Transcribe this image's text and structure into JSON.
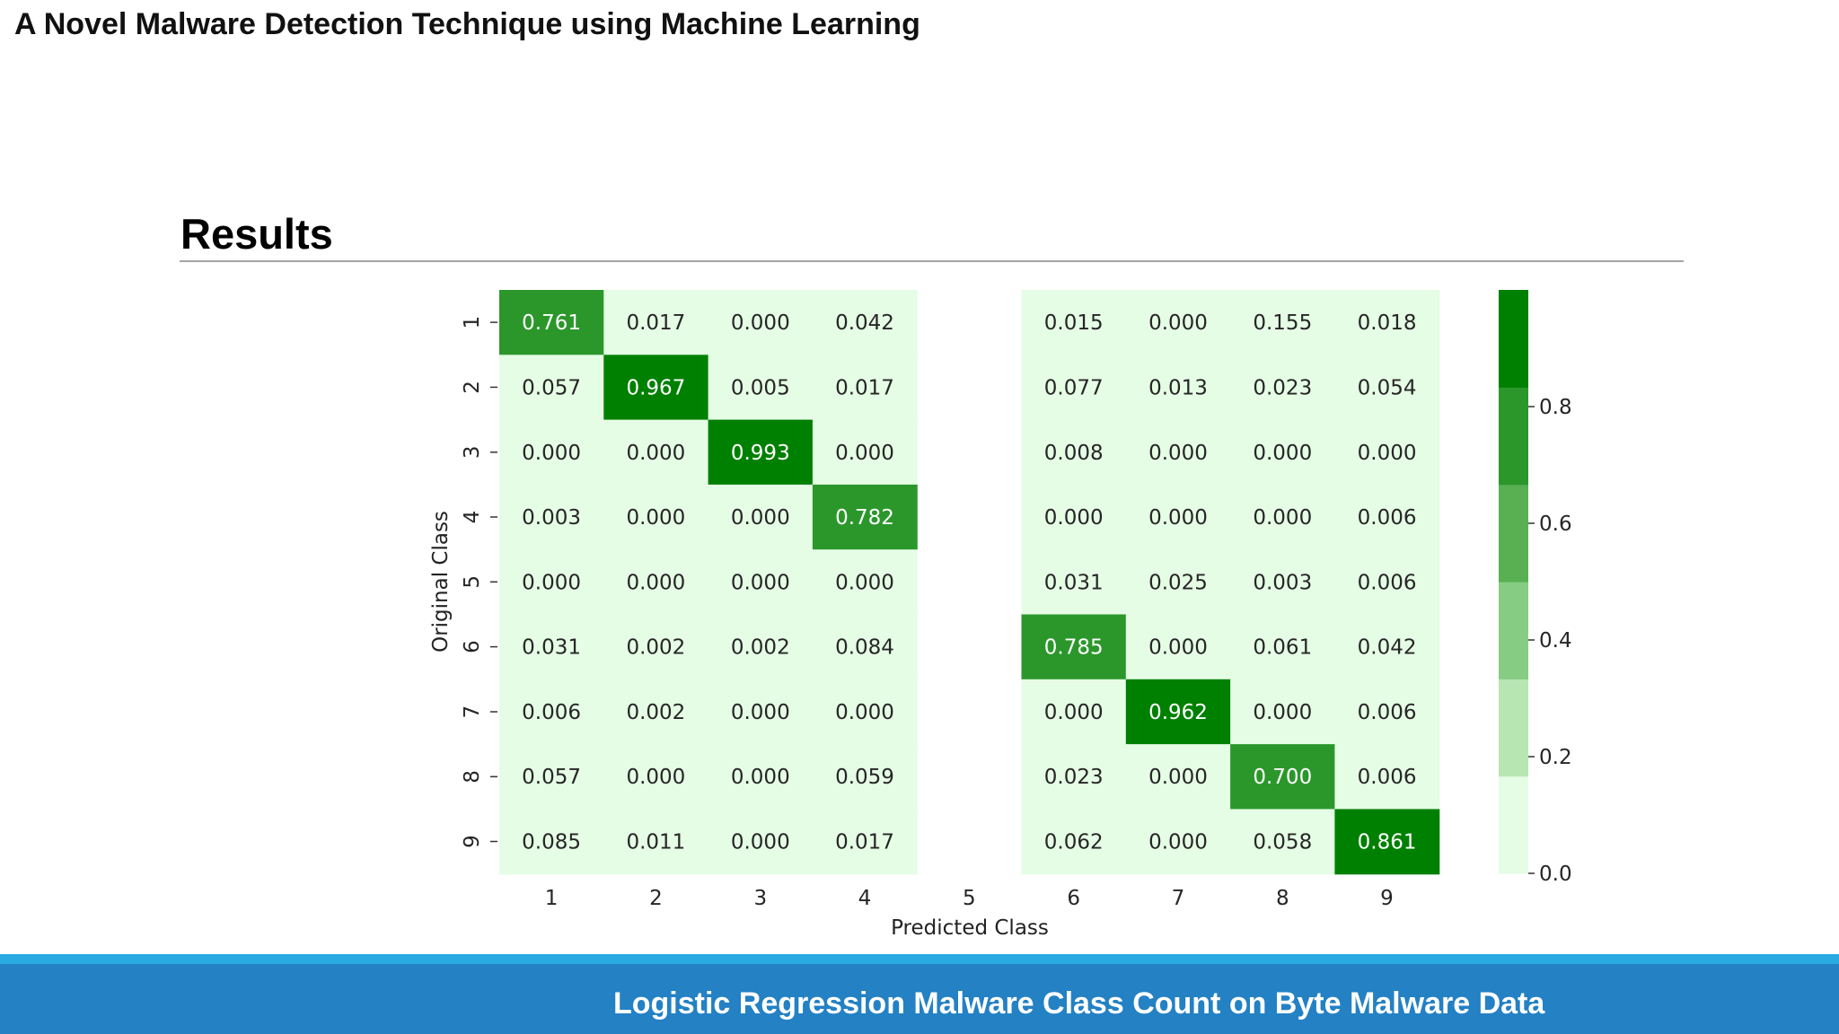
{
  "slide": {
    "deck_title": "A Novel Malware Detection Technique using Machine Learning",
    "section_heading": "Results",
    "footer_caption": "Logistic Regression Malware Class Count on Byte Malware Data"
  },
  "colors": {
    "background": "#ffffff",
    "footer_band_light": "#29abe2",
    "footer_band_dark": "#2381c4",
    "colorbar_levels": [
      "#e5fce5",
      "#b7e6b3",
      "#86cc82",
      "#58b053",
      "#2b972b",
      "#008000"
    ]
  },
  "chart_data": {
    "type": "heatmap",
    "xlabel": "Predicted Class",
    "ylabel": "Original Class",
    "x_categories": [
      "1",
      "2",
      "3",
      "4",
      "5",
      "6",
      "7",
      "8",
      "9"
    ],
    "y_categories": [
      "1",
      "2",
      "3",
      "4",
      "5",
      "6",
      "7",
      "8",
      "9"
    ],
    "cells": [
      [
        "0.761",
        "0.017",
        "0.000",
        "0.042",
        null,
        "0.015",
        "0.000",
        "0.155",
        "0.018"
      ],
      [
        "0.057",
        "0.967",
        "0.005",
        "0.017",
        null,
        "0.077",
        "0.013",
        "0.023",
        "0.054"
      ],
      [
        "0.000",
        "0.000",
        "0.993",
        "0.000",
        null,
        "0.008",
        "0.000",
        "0.000",
        "0.000"
      ],
      [
        "0.003",
        "0.000",
        "0.000",
        "0.782",
        null,
        "0.000",
        "0.000",
        "0.000",
        "0.006"
      ],
      [
        "0.000",
        "0.000",
        "0.000",
        "0.000",
        null,
        "0.031",
        "0.025",
        "0.003",
        "0.006"
      ],
      [
        "0.031",
        "0.002",
        "0.002",
        "0.084",
        null,
        "0.785",
        "0.000",
        "0.061",
        "0.042"
      ],
      [
        "0.006",
        "0.002",
        "0.000",
        "0.000",
        null,
        "0.000",
        "0.962",
        "0.000",
        "0.006"
      ],
      [
        "0.057",
        "0.000",
        "0.000",
        "0.059",
        null,
        "0.023",
        "0.000",
        "0.700",
        "0.006"
      ],
      [
        "0.085",
        "0.011",
        "0.000",
        "0.017",
        null,
        "0.062",
        "0.000",
        "0.058",
        "0.861"
      ]
    ],
    "colorbar": {
      "ticks": [
        "0.0",
        "0.2",
        "0.4",
        "0.6",
        "0.8"
      ],
      "range": [
        0.0,
        1.0
      ],
      "levels": 6
    },
    "legend": "none",
    "grid": false
  }
}
